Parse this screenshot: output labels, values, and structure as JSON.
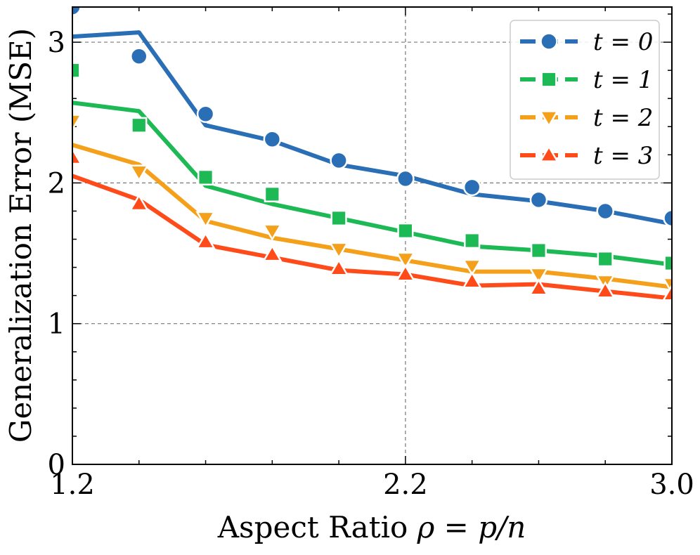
{
  "chart_data": {
    "type": "line",
    "title": "",
    "xlabel": "Aspect Ratio ρ = p/n",
    "xlabel_parts": {
      "prefix": "Aspect Ratio ",
      "math": "ρ = p/n"
    },
    "ylabel": "Generalization Error (MSE)",
    "xlim": [
      1.2,
      3.0
    ],
    "ylim": [
      0,
      3.25
    ],
    "xticks": [
      1.2,
      2.2,
      3.0
    ],
    "xtick_labels": [
      "1.2",
      "2.2",
      "3.0"
    ],
    "yticks": [
      0,
      1,
      2,
      3
    ],
    "ytick_labels": [
      "0",
      "1",
      "2",
      "3"
    ],
    "x_minor_ticks": [
      1.4,
      1.6,
      1.8,
      2.0,
      2.4,
      2.6,
      2.8
    ],
    "y_minor_ticks": [
      0.2,
      0.4,
      0.6,
      0.8,
      1.2,
      1.4,
      1.6,
      1.8,
      2.2,
      2.4,
      2.6,
      2.8,
      3.2
    ],
    "grid": true,
    "legend_position": "top-right",
    "x": [
      1.2,
      1.4,
      1.6,
      1.8,
      2.0,
      2.2,
      2.4,
      2.6,
      2.8,
      3.0
    ],
    "series": [
      {
        "name": "t = 0",
        "color": "#2a6eb5",
        "marker": "circle",
        "markers": [
          3.25,
          2.9,
          2.49,
          2.31,
          2.16,
          2.03,
          1.97,
          1.88,
          1.8,
          1.75
        ],
        "line": [
          3.04,
          3.07,
          2.41,
          2.3,
          2.13,
          2.05,
          1.92,
          1.87,
          1.8,
          1.71
        ]
      },
      {
        "name": "t = 1",
        "color": "#1db954",
        "marker": "square",
        "markers": [
          2.8,
          2.41,
          2.04,
          1.92,
          1.75,
          1.66,
          1.59,
          1.52,
          1.46,
          1.43
        ],
        "line": [
          2.57,
          2.51,
          1.98,
          1.85,
          1.75,
          1.65,
          1.55,
          1.52,
          1.48,
          1.42
        ]
      },
      {
        "name": "t = 2",
        "color": "#f5a01a",
        "marker": "triangle-down",
        "markers": [
          2.44,
          2.08,
          1.75,
          1.66,
          1.53,
          1.46,
          1.41,
          1.35,
          1.3,
          1.28
        ],
        "line": [
          2.27,
          2.13,
          1.73,
          1.61,
          1.53,
          1.45,
          1.37,
          1.37,
          1.32,
          1.26
        ]
      },
      {
        "name": "t = 3",
        "color": "#ff4a1a",
        "marker": "triangle-up",
        "markers": [
          2.18,
          1.85,
          1.58,
          1.49,
          1.39,
          1.35,
          1.3,
          1.25,
          1.23,
          1.21
        ],
        "line": [
          2.05,
          1.88,
          1.56,
          1.47,
          1.38,
          1.35,
          1.27,
          1.28,
          1.23,
          1.18
        ]
      }
    ]
  }
}
